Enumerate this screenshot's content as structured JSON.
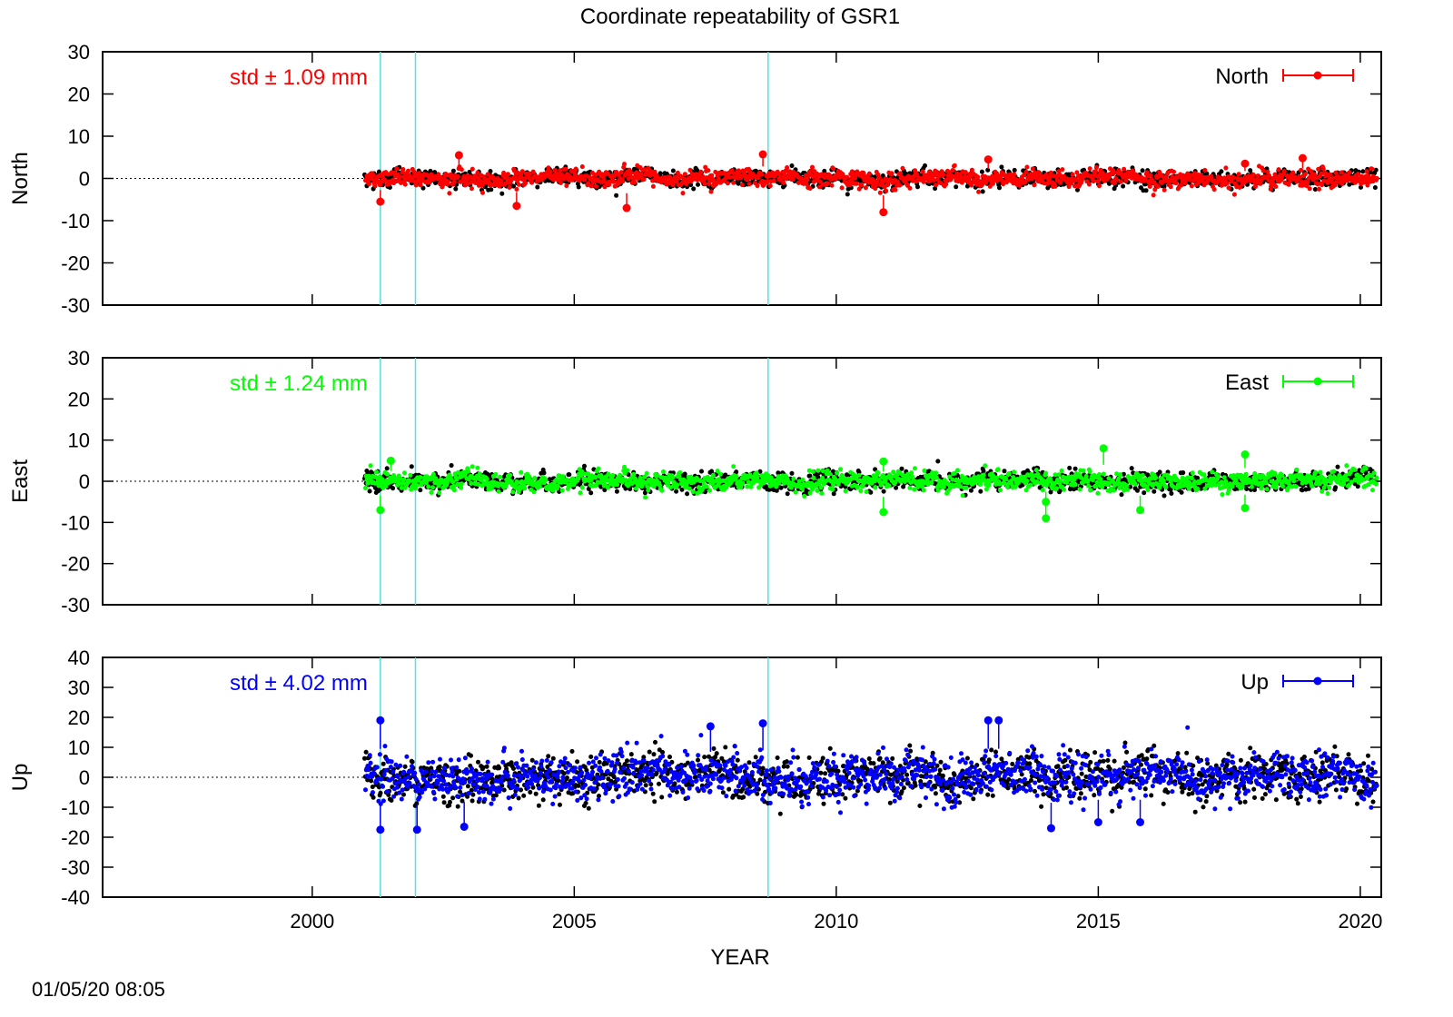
{
  "title": "Coordinate repeatability of GSR1",
  "timestamp": "01/05/20 08:05",
  "chart_data": [
    {
      "type": "scatter",
      "component": "North",
      "ylabel": "North",
      "legend": "North",
      "legend_position": "top-right",
      "color": "#ff0000",
      "std_label": "std ± 1.09 mm",
      "ylim": [
        -30,
        30
      ],
      "yticks": [
        30,
        20,
        10,
        0,
        -10,
        -20,
        -30
      ],
      "xlim": [
        1996,
        2020.4
      ],
      "spread": 1.09,
      "data_start": 2001.0,
      "data_end": 2020.3,
      "outliers": [
        [
          2001.3,
          -5.5
        ],
        [
          2002.8,
          5.5
        ],
        [
          2003.9,
          -6.5
        ],
        [
          2006.0,
          -7.0
        ],
        [
          2008.6,
          5.7
        ],
        [
          2010.9,
          -8.0
        ],
        [
          2012.9,
          4.5
        ],
        [
          2017.8,
          3.5
        ],
        [
          2018.9,
          4.8
        ]
      ]
    },
    {
      "type": "scatter",
      "component": "East",
      "ylabel": "East",
      "legend": "East",
      "legend_position": "top-right",
      "color": "#00ff00",
      "std_label": "std ± 1.24 mm",
      "ylim": [
        -30,
        30
      ],
      "yticks": [
        30,
        20,
        10,
        0,
        -10,
        -20,
        -30
      ],
      "xlim": [
        1996,
        2020.4
      ],
      "spread": 1.24,
      "data_start": 2001.0,
      "data_end": 2020.3,
      "outliers": [
        [
          2001.3,
          -7.0
        ],
        [
          2001.5,
          5.0
        ],
        [
          2010.9,
          4.8
        ],
        [
          2010.9,
          -7.5
        ],
        [
          2014.0,
          -9.0
        ],
        [
          2014.0,
          -5.0
        ],
        [
          2015.1,
          8.0
        ],
        [
          2015.8,
          -7.0
        ],
        [
          2017.8,
          6.5
        ],
        [
          2017.8,
          -6.5
        ]
      ]
    },
    {
      "type": "scatter",
      "component": "Up",
      "ylabel": "Up",
      "legend": "Up",
      "legend_position": "top-right",
      "color": "#0000ff",
      "std_label": "std ± 4.02 mm",
      "ylim": [
        -40,
        40
      ],
      "yticks": [
        40,
        30,
        20,
        10,
        0,
        -10,
        -20,
        -30,
        -40
      ],
      "xlim": [
        1996,
        2020.4
      ],
      "spread": 4.02,
      "data_start": 2001.0,
      "data_end": 2020.3,
      "outliers": [
        [
          2001.3,
          19.0
        ],
        [
          2001.3,
          -17.5
        ],
        [
          2002.0,
          -17.5
        ],
        [
          2002.9,
          -16.5
        ],
        [
          2007.6,
          17.0
        ],
        [
          2008.6,
          18.0
        ],
        [
          2012.9,
          19.0
        ],
        [
          2013.1,
          19.0
        ],
        [
          2014.1,
          -17.0
        ],
        [
          2015.0,
          -15.0
        ],
        [
          2015.8,
          -15.0
        ]
      ]
    }
  ],
  "xaxis": {
    "label": "YEAR",
    "ticks": [
      2000,
      2005,
      2010,
      2015,
      2020
    ]
  },
  "events": [
    2001.3,
    2001.97,
    2008.7
  ],
  "colors": {
    "event_line": "#55e0e0",
    "black_points": "#000000"
  }
}
